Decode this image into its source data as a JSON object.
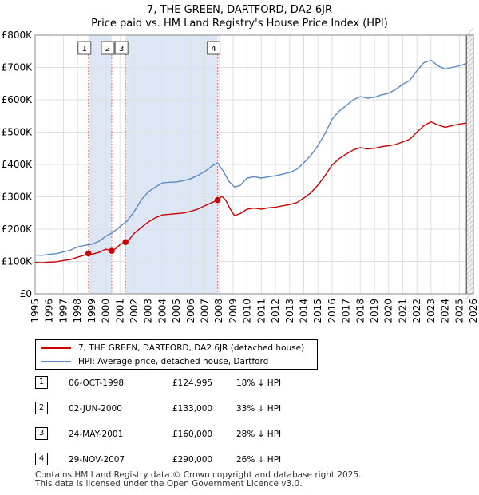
{
  "title_line1": "7, THE GREEN, DARTFORD, DA2 6JR",
  "title_line2": "Price paid vs. HM Land Registry's House Price Index (HPI)",
  "colors": {
    "property": "#cc0000",
    "hpi": "#5b8ac6",
    "shade": "#dde6f5",
    "vline": "#e07070"
  },
  "chart_data": {
    "type": "line",
    "title": "7, THE GREEN, DARTFORD, DA2 6JR — Price paid vs. HM Land Registry's House Price Index (HPI)",
    "xlabel": "",
    "ylabel": "",
    "xlim": [
      1995,
      2026
    ],
    "ylim": [
      0,
      800000
    ],
    "yticks": [
      0,
      100000,
      200000,
      300000,
      400000,
      500000,
      600000,
      700000,
      800000
    ],
    "ytick_labels": [
      "£0",
      "£100K",
      "£200K",
      "£300K",
      "£400K",
      "£500K",
      "£600K",
      "£700K",
      "£800K"
    ],
    "xticks": [
      1995,
      1996,
      1997,
      1998,
      1999,
      2000,
      2001,
      2002,
      2003,
      2004,
      2005,
      2006,
      2007,
      2008,
      2009,
      2010,
      2011,
      2012,
      2013,
      2014,
      2015,
      2016,
      2017,
      2018,
      2019,
      2020,
      2021,
      2022,
      2023,
      2024,
      2025,
      2026
    ],
    "grid": true,
    "series": [
      {
        "name": "7, THE GREEN, DARTFORD, DA2 6JR (detached house)",
        "color": "#cc0000",
        "x": [
          1995.0,
          1995.5,
          1996.0,
          1996.5,
          1997.0,
          1997.5,
          1998.0,
          1998.5,
          1998.77,
          1999.0,
          1999.5,
          2000.0,
          2000.42,
          2000.7,
          2001.0,
          2001.39,
          2001.7,
          2002.0,
          2002.5,
          2003.0,
          2003.5,
          2004.0,
          2004.5,
          2005.0,
          2005.5,
          2006.0,
          2006.5,
          2007.0,
          2007.5,
          2007.91,
          2008.2,
          2008.5,
          2008.8,
          2009.1,
          2009.5,
          2010.0,
          2010.5,
          2011.0,
          2011.5,
          2012.0,
          2012.5,
          2013.0,
          2013.5,
          2014.0,
          2014.5,
          2015.0,
          2015.5,
          2016.0,
          2016.5,
          2017.0,
          2017.5,
          2018.0,
          2018.5,
          2019.0,
          2019.5,
          2020.0,
          2020.5,
          2021.0,
          2021.5,
          2022.0,
          2022.5,
          2023.0,
          2023.5,
          2024.0,
          2024.5,
          2025.0,
          2025.5
        ],
        "values": [
          97000,
          96000,
          98000,
          99000,
          103000,
          106000,
          113000,
          120000,
          124995,
          122000,
          128000,
          138000,
          133000,
          140000,
          152000,
          160000,
          170000,
          187000,
          205000,
          222000,
          235000,
          244000,
          246000,
          248000,
          250000,
          255000,
          262000,
          272000,
          282000,
          290000,
          302000,
          288000,
          262000,
          242000,
          248000,
          262000,
          265000,
          262000,
          266000,
          268000,
          272000,
          276000,
          282000,
          296000,
          312000,
          336000,
          365000,
          398000,
          418000,
          432000,
          445000,
          452000,
          448000,
          450000,
          455000,
          458000,
          462000,
          470000,
          478000,
          500000,
          520000,
          532000,
          522000,
          515000,
          520000,
          525000,
          528000
        ]
      },
      {
        "name": "HPI: Average price, detached house, Dartford",
        "color": "#5b8ac6",
        "x": [
          1995.0,
          1995.5,
          1996.0,
          1996.5,
          1997.0,
          1997.5,
          1998.0,
          1998.5,
          1999.0,
          1999.5,
          2000.0,
          2000.5,
          2001.0,
          2001.5,
          2002.0,
          2002.5,
          2003.0,
          2003.5,
          2004.0,
          2004.5,
          2005.0,
          2005.5,
          2006.0,
          2006.5,
          2007.0,
          2007.5,
          2007.9,
          2008.3,
          2008.7,
          2009.1,
          2009.5,
          2010.0,
          2010.5,
          2011.0,
          2011.5,
          2012.0,
          2012.5,
          2013.0,
          2013.5,
          2014.0,
          2014.5,
          2015.0,
          2015.5,
          2016.0,
          2016.5,
          2017.0,
          2017.5,
          2018.0,
          2018.5,
          2019.0,
          2019.5,
          2020.0,
          2020.5,
          2021.0,
          2021.5,
          2022.0,
          2022.5,
          2023.0,
          2023.5,
          2024.0,
          2024.5,
          2025.0,
          2025.5
        ],
        "values": [
          120000,
          119000,
          122000,
          124000,
          130000,
          135000,
          145000,
          150000,
          153000,
          162000,
          178000,
          190000,
          208000,
          225000,
          254000,
          290000,
          315000,
          330000,
          343000,
          345000,
          346000,
          350000,
          356000,
          366000,
          378000,
          395000,
          405000,
          380000,
          348000,
          330000,
          335000,
          358000,
          362000,
          358000,
          362000,
          365000,
          370000,
          375000,
          385000,
          405000,
          428000,
          458000,
          495000,
          540000,
          565000,
          582000,
          600000,
          610000,
          605000,
          608000,
          615000,
          620000,
          632000,
          648000,
          660000,
          690000,
          715000,
          722000,
          705000,
          695000,
          700000,
          705000,
          712000
        ]
      }
    ],
    "sales": [
      {
        "label": "1",
        "x": 1998.77,
        "value": 124995
      },
      {
        "label": "2",
        "x": 2000.42,
        "value": 133000
      },
      {
        "label": "3",
        "x": 2001.39,
        "value": 160000
      },
      {
        "label": "4",
        "x": 2007.91,
        "value": 290000
      }
    ],
    "shaded_periods": [
      [
        1998.77,
        2000.42
      ],
      [
        2001.39,
        2007.91
      ]
    ],
    "future_start": 2025.5
  },
  "legend": {
    "property_label": "7, THE GREEN, DARTFORD, DA2 6JR (detached house)",
    "hpi_label": "HPI: Average price, detached house, Dartford"
  },
  "transactions": [
    {
      "num": "1",
      "date": "06-OCT-1998",
      "price": "£124,995",
      "hpi": "18% ↓ HPI"
    },
    {
      "num": "2",
      "date": "02-JUN-2000",
      "price": "£133,000",
      "hpi": "33% ↓ HPI"
    },
    {
      "num": "3",
      "date": "24-MAY-2001",
      "price": "£160,000",
      "hpi": "28% ↓ HPI"
    },
    {
      "num": "4",
      "date": "29-NOV-2007",
      "price": "£290,000",
      "hpi": "26% ↓ HPI"
    }
  ],
  "footer_line1": "Contains HM Land Registry data © Crown copyright and database right 2025.",
  "footer_line2": "This data is licensed under the Open Government Licence v3.0."
}
